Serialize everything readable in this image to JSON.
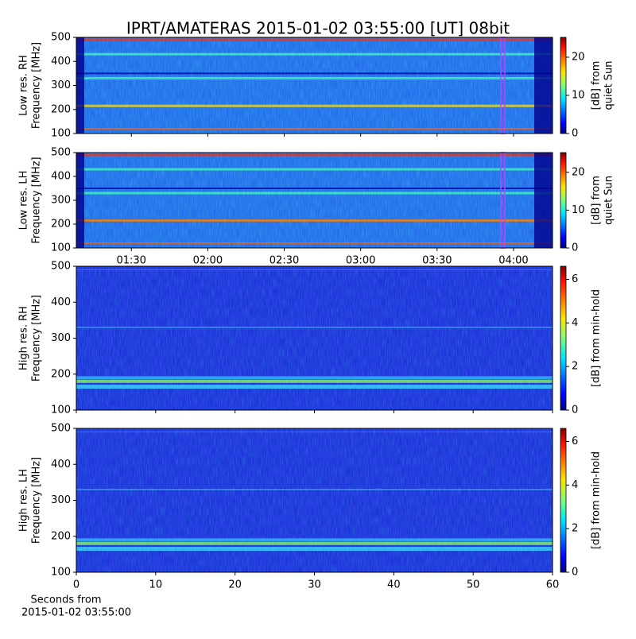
{
  "chart_data": [
    {
      "type": "spectrogram",
      "title": "IPRT/AMATERAS 2015-01-02 03:55:00 [UT]   08bit",
      "ylabel": [
        "Low res. RH",
        "Frequency [MHz]"
      ],
      "ylim": [
        100,
        500
      ],
      "yticks": [
        100,
        200,
        300,
        400,
        500
      ],
      "colorbar_label": [
        "[dB] from",
        "quiet Sun"
      ],
      "clim": [
        0,
        25.2
      ],
      "cticks": [
        0,
        10,
        20
      ]
    },
    {
      "type": "spectrogram",
      "ylabel": [
        "Low res. LH",
        "Frequency [MHz]"
      ],
      "ylim": [
        100,
        500
      ],
      "yticks": [
        100,
        200,
        300,
        400,
        500
      ],
      "xlim": [
        68.4,
        255.3
      ],
      "xticks": [
        {
          "value": 90,
          "label": "01:30"
        },
        {
          "value": 120,
          "label": "02:00"
        },
        {
          "value": 150,
          "label": "02:30"
        },
        {
          "value": 180,
          "label": "03:00"
        },
        {
          "value": 210,
          "label": "03:30"
        },
        {
          "value": 240,
          "label": "04:00"
        }
      ],
      "colorbar_label": [
        "[dB] from",
        "quiet Sun"
      ],
      "clim": [
        0,
        25.2
      ],
      "cticks": [
        0,
        10,
        20
      ]
    },
    {
      "type": "spectrogram",
      "ylabel": [
        "High res. RH",
        "Frequency [MHz]"
      ],
      "ylim": [
        100,
        500
      ],
      "yticks": [
        100,
        200,
        300,
        400,
        500
      ],
      "colorbar_label": [
        "[dB] from min-hold"
      ],
      "clim": [
        0,
        6.6
      ],
      "cticks": [
        0,
        2,
        4,
        6
      ]
    },
    {
      "type": "spectrogram",
      "ylabel": [
        "High res. LH",
        "Frequency [MHz]"
      ],
      "ylim": [
        100,
        500
      ],
      "yticks": [
        100,
        200,
        300,
        400,
        500
      ],
      "xlim": [
        0,
        60
      ],
      "xticks": [
        0,
        10,
        20,
        30,
        40,
        50,
        60
      ],
      "xlabel": [
        "Seconds from",
        "2015-01-02 03:55:00"
      ],
      "colorbar_label": [
        "[dB] from min-hold"
      ],
      "clim": [
        0,
        6.6
      ],
      "cticks": [
        0,
        2,
        4,
        6
      ]
    }
  ]
}
